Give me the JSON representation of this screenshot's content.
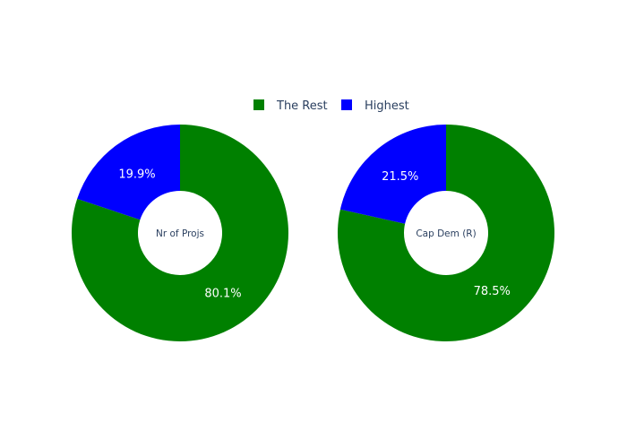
{
  "chart_data": [
    {
      "type": "pie",
      "hole": true,
      "center_label": "Nr of Projs",
      "slices": [
        {
          "name": "The Rest",
          "value": 80.1,
          "label": "80.1%",
          "color": "#008000"
        },
        {
          "name": "Highest",
          "value": 19.9,
          "label": "19.9%",
          "color": "#0000ff"
        }
      ]
    },
    {
      "type": "pie",
      "hole": true,
      "center_label": "Cap Dem (R)",
      "slices": [
        {
          "name": "The Rest",
          "value": 78.5,
          "label": "78.5%",
          "color": "#008000"
        },
        {
          "name": "Highest",
          "value": 21.5,
          "label": "21.5%",
          "color": "#0000ff"
        }
      ]
    }
  ],
  "legend": {
    "position": "top-center",
    "items": [
      {
        "name": "The Rest",
        "color": "#008000"
      },
      {
        "name": "Highest",
        "color": "#0000ff"
      }
    ]
  }
}
